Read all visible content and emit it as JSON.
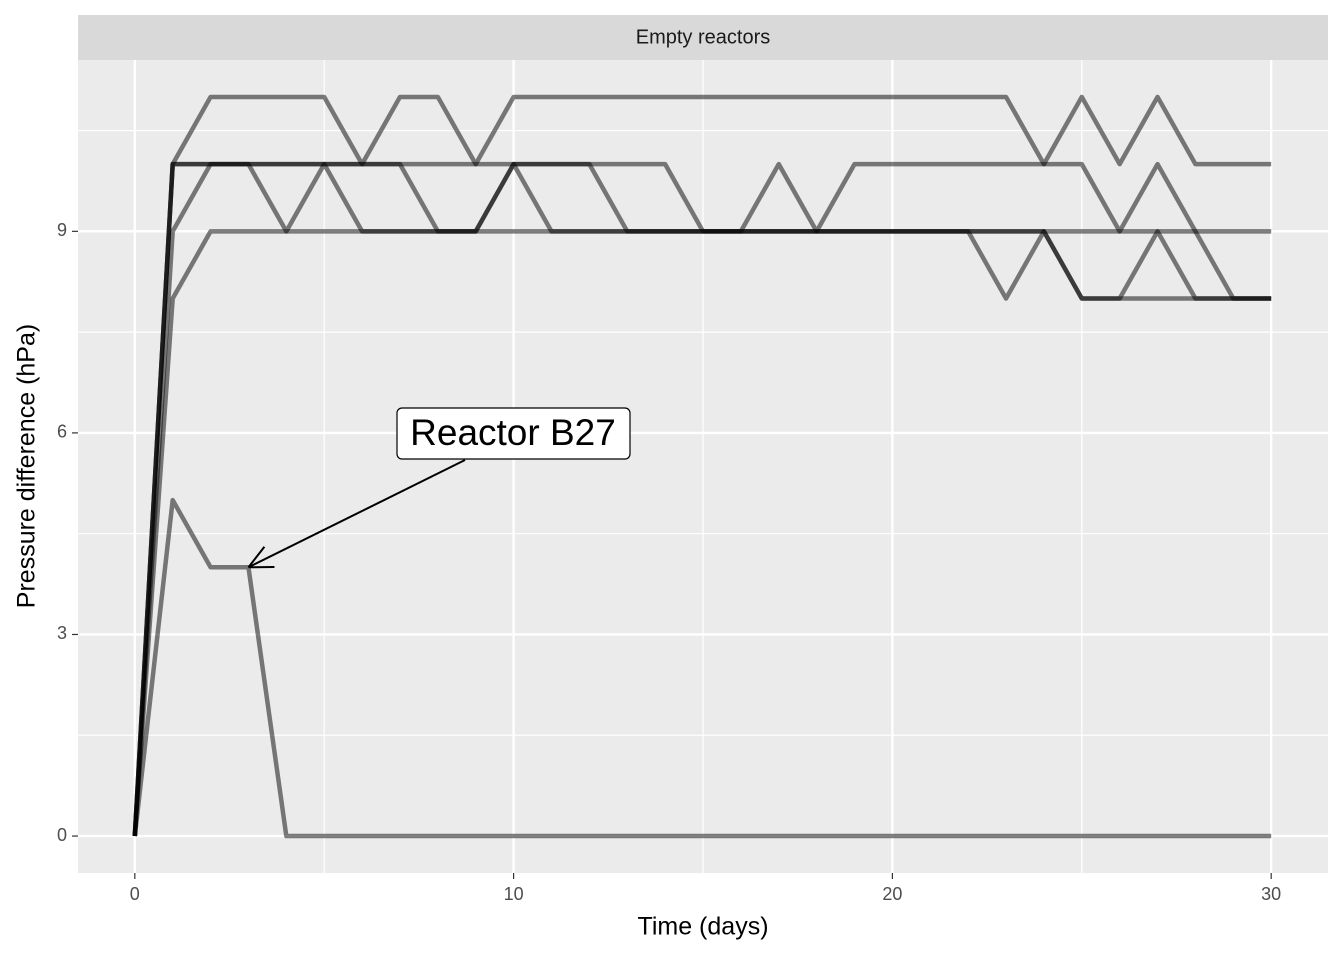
{
  "chart_data": {
    "type": "line",
    "facet": "Empty reactors",
    "x_label": "Time (days)",
    "y_label": "Pressure difference (hPa)",
    "x": [
      0,
      1,
      2,
      3,
      4,
      5,
      6,
      7,
      8,
      9,
      10,
      11,
      12,
      13,
      14,
      15,
      16,
      17,
      18,
      19,
      20,
      21,
      22,
      23,
      24,
      25,
      26,
      27,
      28,
      29,
      30
    ],
    "series": [
      {
        "values": [
          0,
          10,
          11,
          11,
          11,
          11,
          10,
          11,
          11,
          10,
          11,
          11,
          11,
          11,
          11,
          11,
          11,
          11,
          11,
          11,
          11,
          11,
          11,
          11,
          10,
          11,
          10,
          11,
          10,
          10,
          10
        ]
      },
      {
        "values": [
          0,
          10,
          10,
          10,
          10,
          10,
          10,
          10,
          9,
          9,
          10,
          10,
          10,
          9,
          9,
          9,
          9,
          9,
          9,
          9,
          9,
          9,
          9,
          9,
          9,
          8,
          8,
          8,
          8,
          8,
          8
        ]
      },
      {
        "values": [
          0,
          9,
          10,
          10,
          9,
          10,
          9,
          9,
          9,
          9,
          10,
          9,
          9,
          9,
          9,
          9,
          9,
          9,
          9,
          9,
          9,
          9,
          9,
          8,
          9,
          8,
          8,
          9,
          8,
          8,
          8
        ]
      },
      {
        "values": [
          0,
          8,
          9,
          9,
          9,
          9,
          9,
          9,
          9,
          9,
          9,
          9,
          9,
          9,
          9,
          9,
          9,
          9,
          9,
          9,
          9,
          9,
          9,
          9,
          9,
          9,
          9,
          9,
          9,
          9,
          9
        ]
      },
      {
        "values": [
          0,
          5,
          4,
          4,
          0,
          0,
          0,
          0,
          0,
          0,
          0,
          0,
          0,
          0,
          0,
          0,
          0,
          0,
          0,
          0,
          0,
          0,
          0,
          0,
          0,
          0,
          0,
          0,
          0,
          0,
          0
        ]
      },
      {
        "values": [
          0,
          10,
          10,
          10,
          10,
          10,
          10,
          10,
          10,
          10,
          10,
          10,
          10,
          10,
          10,
          9,
          9,
          10,
          9,
          10,
          10,
          10,
          10,
          10,
          10,
          10,
          9,
          10,
          9,
          8,
          8
        ]
      }
    ],
    "color": "#000000",
    "alpha": 0.5,
    "annotation": "Reactor B27",
    "xlim": [
      -1.5,
      31.5
    ],
    "xticks": [
      0,
      10,
      20,
      30
    ],
    "ylim": [
      -0.55,
      11.55
    ],
    "yticks": [
      0,
      3,
      6,
      9
    ],
    "grid": true
  }
}
